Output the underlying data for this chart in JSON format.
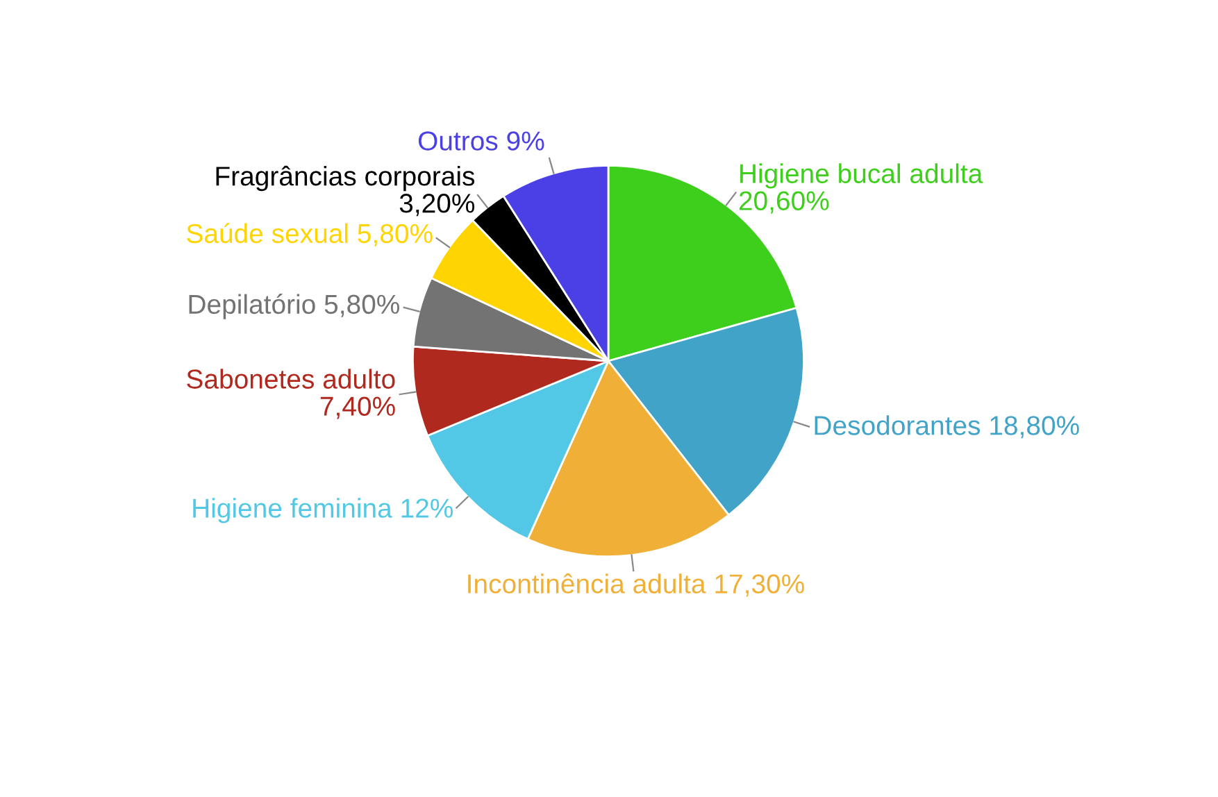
{
  "chart_data": {
    "type": "pie",
    "categories": [
      "Higiene bucal adulta",
      "Desodorantes",
      "Incontinência adulta",
      "Higiene feminina",
      "Sabonetes adulto",
      "Depilatório",
      "Saúde sexual",
      "Fragrâncias corporais",
      "Outros"
    ],
    "values": [
      20.6,
      18.8,
      17.3,
      12,
      7.4,
      5.8,
      5.8,
      3.2,
      9
    ],
    "value_labels": [
      "20,60%",
      "18,80%",
      "17,30%",
      "12%",
      "7,40%",
      "5,80%",
      "5,80%",
      "3,20%",
      "9%"
    ],
    "colors": [
      "#3ecf1c",
      "#41a3c8",
      "#f0b038",
      "#52c8e6",
      "#b0291f",
      "#737373",
      "#ffd400",
      "#000000",
      "#4a40e6"
    ]
  }
}
